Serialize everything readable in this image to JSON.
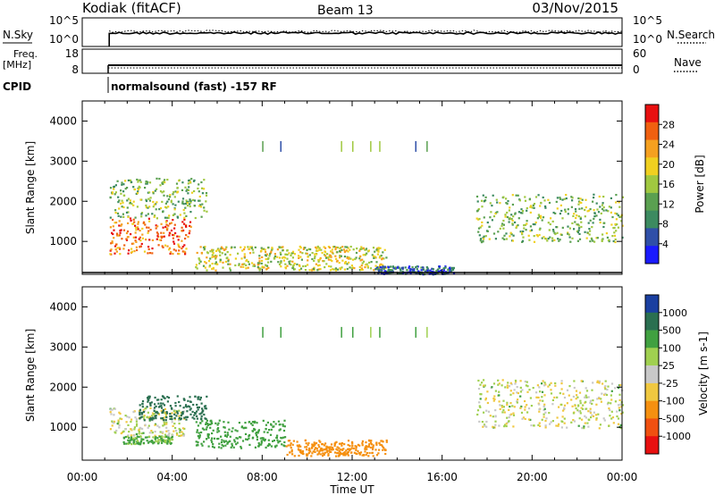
{
  "header": {
    "station": "Kodiak (fitACF)",
    "beam": "Beam 13",
    "date": "03/Nov/2015"
  },
  "strip_labels": {
    "nsky": "N.Sky",
    "nsearch": "N.Search",
    "freq_line1": "Freq.",
    "freq_line2": "[MHz]",
    "nave": "Nave",
    "cpid": "CPID",
    "cpid_value": "normalsound (fast) -157 RF",
    "noise_ticks_left": [
      "10^5",
      "10^0"
    ],
    "noise_ticks_right": [
      "10^5",
      "10^0"
    ],
    "freq_ticks_left": [
      "18",
      "8"
    ],
    "nave_ticks_right": [
      "60",
      "0"
    ]
  },
  "colors": {
    "power_scale": [
      "#1a1aff",
      "#2f4fa8",
      "#3c8a60",
      "#5aa050",
      "#a0c840",
      "#f0d020",
      "#f5a020",
      "#f06010",
      "#e81010"
    ],
    "velocity_scale": [
      "#e81010",
      "#f05010",
      "#f59010",
      "#f0c840",
      "#c8c8c8",
      "#a0d050",
      "#40a040",
      "#2a6f50",
      "#1a3fa0"
    ]
  },
  "chart_data": [
    {
      "type": "heatmap",
      "panel": "power",
      "ylabel": "Slant Range [km]",
      "xlabel": "Time UT",
      "xlim": [
        "00:00",
        "24:00"
      ],
      "ylim": [
        180,
        4500
      ],
      "yticks": [
        1000,
        2000,
        3000,
        4000
      ],
      "xtick_labels": [
        "00:00",
        "04:00",
        "08:00",
        "12:00",
        "16:00",
        "20:00",
        "00:00"
      ],
      "colorbar_label": "Power [dB]",
      "colorbar_ticks": [
        "4",
        "8",
        "12",
        "16",
        "20",
        "24",
        "28"
      ],
      "features": [
        {
          "t_start": 1.2,
          "t_end": 4.8,
          "range_km": [
            700,
            1600
          ],
          "level_db": 26
        },
        {
          "t_start": 1.2,
          "t_end": 5.5,
          "range_km": [
            1600,
            2600
          ],
          "level_db": 14
        },
        {
          "t_start": 5.0,
          "t_end": 13.5,
          "range_km": [
            300,
            900
          ],
          "level_db": 18
        },
        {
          "t_start": 13.0,
          "t_end": 16.5,
          "range_km": [
            200,
            400
          ],
          "level_db": 6
        },
        {
          "t_start": 17.5,
          "t_end": 24.0,
          "range_km": [
            1000,
            2200
          ],
          "level_db": 14
        }
      ]
    },
    {
      "type": "heatmap",
      "panel": "velocity",
      "ylabel": "Slant Range [km]",
      "xlabel": "Time UT",
      "xlim": [
        "00:00",
        "24:00"
      ],
      "ylim": [
        180,
        4500
      ],
      "yticks": [
        1000,
        2000,
        3000,
        4000
      ],
      "xtick_labels": [
        "00:00",
        "04:00",
        "08:00",
        "12:00",
        "16:00",
        "20:00",
        "00:00"
      ],
      "colorbar_label": "Velocity [m s-1]",
      "colorbar_ticks": [
        "1000",
        "500",
        "100",
        "25",
        "-25",
        "-100",
        "-500",
        "-1000"
      ],
      "features": [
        {
          "t_start": 1.2,
          "t_end": 4.5,
          "range_km": [
            800,
            1500
          ],
          "velocity_ms": 10
        },
        {
          "t_start": 2.5,
          "t_end": 5.5,
          "range_km": [
            1200,
            1800
          ],
          "velocity_ms": 600
        },
        {
          "t_start": 1.8,
          "t_end": 4.0,
          "range_km": [
            600,
            800
          ],
          "velocity_ms": 150
        },
        {
          "t_start": 5.0,
          "t_end": 9.0,
          "range_km": [
            500,
            1200
          ],
          "velocity_ms": 300
        },
        {
          "t_start": 9.0,
          "t_end": 13.5,
          "range_km": [
            300,
            700
          ],
          "velocity_ms": -200
        },
        {
          "t_start": 17.5,
          "t_end": 24.0,
          "range_km": [
            1000,
            2200
          ],
          "velocity_ms": 10
        }
      ]
    }
  ],
  "time_axis_label": "Time UT"
}
